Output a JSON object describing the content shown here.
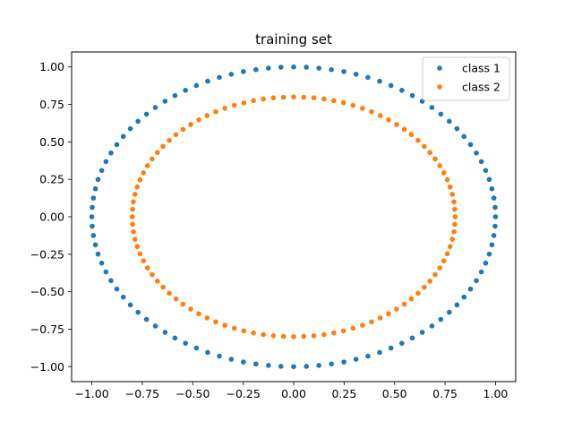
{
  "chart_data": {
    "type": "scatter",
    "title": "training set",
    "xlabel": "",
    "ylabel": "",
    "xlim": [
      -1.1,
      1.1
    ],
    "ylim": [
      -1.1,
      1.1
    ],
    "xticks": [
      -1.0,
      -0.75,
      -0.5,
      -0.25,
      0.0,
      0.25,
      0.5,
      0.75,
      1.0
    ],
    "yticks": [
      -1.0,
      -0.75,
      -0.5,
      -0.25,
      0.0,
      0.25,
      0.5,
      0.75,
      1.0
    ],
    "xtick_labels": [
      "−1.00",
      "−0.75",
      "−0.50",
      "−0.25",
      "0.00",
      "0.25",
      "0.50",
      "0.75",
      "1.00"
    ],
    "ytick_labels": [
      "−1.00",
      "−0.75",
      "−0.50",
      "−0.25",
      "0.00",
      "0.25",
      "0.50",
      "0.75",
      "1.00"
    ],
    "grid": false,
    "legend_position": "top-right",
    "series": [
      {
        "name": "class 1",
        "color": "#1f77b4",
        "points": [
          [
            1.0,
            0.0
          ],
          [
            0.998,
            0.063
          ],
          [
            0.992,
            0.125
          ],
          [
            0.982,
            0.187
          ],
          [
            0.969,
            0.249
          ],
          [
            0.951,
            0.309
          ],
          [
            0.93,
            0.368
          ],
          [
            0.905,
            0.426
          ],
          [
            0.876,
            0.482
          ],
          [
            0.844,
            0.536
          ],
          [
            0.809,
            0.588
          ],
          [
            0.771,
            0.637
          ],
          [
            0.729,
            0.685
          ],
          [
            0.685,
            0.729
          ],
          [
            0.637,
            0.771
          ],
          [
            0.588,
            0.809
          ],
          [
            0.536,
            0.844
          ],
          [
            0.482,
            0.876
          ],
          [
            0.426,
            0.905
          ],
          [
            0.368,
            0.93
          ],
          [
            0.309,
            0.951
          ],
          [
            0.249,
            0.969
          ],
          [
            0.187,
            0.982
          ],
          [
            0.125,
            0.992
          ],
          [
            0.063,
            0.998
          ],
          [
            0.0,
            1.0
          ],
          [
            -0.063,
            0.998
          ],
          [
            -0.125,
            0.992
          ],
          [
            -0.187,
            0.982
          ],
          [
            -0.249,
            0.969
          ],
          [
            -0.309,
            0.951
          ],
          [
            -0.368,
            0.93
          ],
          [
            -0.426,
            0.905
          ],
          [
            -0.482,
            0.876
          ],
          [
            -0.536,
            0.844
          ],
          [
            -0.588,
            0.809
          ],
          [
            -0.637,
            0.771
          ],
          [
            -0.685,
            0.729
          ],
          [
            -0.729,
            0.685
          ],
          [
            -0.771,
            0.637
          ],
          [
            -0.809,
            0.588
          ],
          [
            -0.844,
            0.536
          ],
          [
            -0.876,
            0.482
          ],
          [
            -0.905,
            0.426
          ],
          [
            -0.93,
            0.368
          ],
          [
            -0.951,
            0.309
          ],
          [
            -0.969,
            0.249
          ],
          [
            -0.982,
            0.187
          ],
          [
            -0.992,
            0.125
          ],
          [
            -0.998,
            0.063
          ],
          [
            -1.0,
            0.0
          ],
          [
            -0.998,
            -0.063
          ],
          [
            -0.992,
            -0.125
          ],
          [
            -0.982,
            -0.187
          ],
          [
            -0.969,
            -0.249
          ],
          [
            -0.951,
            -0.309
          ],
          [
            -0.93,
            -0.368
          ],
          [
            -0.905,
            -0.426
          ],
          [
            -0.876,
            -0.482
          ],
          [
            -0.844,
            -0.536
          ],
          [
            -0.809,
            -0.588
          ],
          [
            -0.771,
            -0.637
          ],
          [
            -0.729,
            -0.685
          ],
          [
            -0.685,
            -0.729
          ],
          [
            -0.637,
            -0.771
          ],
          [
            -0.588,
            -0.809
          ],
          [
            -0.536,
            -0.844
          ],
          [
            -0.482,
            -0.876
          ],
          [
            -0.426,
            -0.905
          ],
          [
            -0.368,
            -0.93
          ],
          [
            -0.309,
            -0.951
          ],
          [
            -0.249,
            -0.969
          ],
          [
            -0.187,
            -0.982
          ],
          [
            -0.125,
            -0.992
          ],
          [
            -0.063,
            -0.998
          ],
          [
            0.0,
            -1.0
          ],
          [
            0.063,
            -0.998
          ],
          [
            0.125,
            -0.992
          ],
          [
            0.187,
            -0.982
          ],
          [
            0.249,
            -0.969
          ],
          [
            0.309,
            -0.951
          ],
          [
            0.368,
            -0.93
          ],
          [
            0.426,
            -0.905
          ],
          [
            0.482,
            -0.876
          ],
          [
            0.536,
            -0.844
          ],
          [
            0.588,
            -0.809
          ],
          [
            0.637,
            -0.771
          ],
          [
            0.685,
            -0.729
          ],
          [
            0.729,
            -0.685
          ],
          [
            0.771,
            -0.637
          ],
          [
            0.809,
            -0.588
          ],
          [
            0.844,
            -0.536
          ],
          [
            0.876,
            -0.482
          ],
          [
            0.905,
            -0.426
          ],
          [
            0.93,
            -0.368
          ],
          [
            0.951,
            -0.309
          ],
          [
            0.969,
            -0.249
          ],
          [
            0.982,
            -0.187
          ],
          [
            0.992,
            -0.125
          ],
          [
            0.998,
            -0.063
          ]
        ]
      },
      {
        "name": "class 2",
        "color": "#ff7f0e",
        "points": [
          [
            0.8,
            0.0
          ],
          [
            0.798,
            0.05
          ],
          [
            0.794,
            0.1
          ],
          [
            0.786,
            0.15
          ],
          [
            0.775,
            0.199
          ],
          [
            0.761,
            0.247
          ],
          [
            0.744,
            0.294
          ],
          [
            0.724,
            0.341
          ],
          [
            0.701,
            0.386
          ],
          [
            0.675,
            0.429
          ],
          [
            0.647,
            0.47
          ],
          [
            0.616,
            0.51
          ],
          [
            0.583,
            0.548
          ],
          [
            0.548,
            0.583
          ],
          [
            0.51,
            0.616
          ],
          [
            0.47,
            0.647
          ],
          [
            0.429,
            0.675
          ],
          [
            0.386,
            0.701
          ],
          [
            0.341,
            0.724
          ],
          [
            0.294,
            0.744
          ],
          [
            0.247,
            0.761
          ],
          [
            0.199,
            0.775
          ],
          [
            0.15,
            0.786
          ],
          [
            0.1,
            0.794
          ],
          [
            0.05,
            0.798
          ],
          [
            0.0,
            0.8
          ],
          [
            -0.05,
            0.798
          ],
          [
            -0.1,
            0.794
          ],
          [
            -0.15,
            0.786
          ],
          [
            -0.199,
            0.775
          ],
          [
            -0.247,
            0.761
          ],
          [
            -0.294,
            0.744
          ],
          [
            -0.341,
            0.724
          ],
          [
            -0.386,
            0.701
          ],
          [
            -0.429,
            0.675
          ],
          [
            -0.47,
            0.647
          ],
          [
            -0.51,
            0.616
          ],
          [
            -0.548,
            0.583
          ],
          [
            -0.583,
            0.548
          ],
          [
            -0.616,
            0.51
          ],
          [
            -0.647,
            0.47
          ],
          [
            -0.675,
            0.429
          ],
          [
            -0.701,
            0.386
          ],
          [
            -0.724,
            0.341
          ],
          [
            -0.744,
            0.294
          ],
          [
            -0.761,
            0.247
          ],
          [
            -0.775,
            0.199
          ],
          [
            -0.786,
            0.15
          ],
          [
            -0.794,
            0.1
          ],
          [
            -0.798,
            0.05
          ],
          [
            -0.8,
            0.0
          ],
          [
            -0.798,
            -0.05
          ],
          [
            -0.794,
            -0.1
          ],
          [
            -0.786,
            -0.15
          ],
          [
            -0.775,
            -0.199
          ],
          [
            -0.761,
            -0.247
          ],
          [
            -0.744,
            -0.294
          ],
          [
            -0.724,
            -0.341
          ],
          [
            -0.701,
            -0.386
          ],
          [
            -0.675,
            -0.429
          ],
          [
            -0.647,
            -0.47
          ],
          [
            -0.616,
            -0.51
          ],
          [
            -0.583,
            -0.548
          ],
          [
            -0.548,
            -0.583
          ],
          [
            -0.51,
            -0.616
          ],
          [
            -0.47,
            -0.647
          ],
          [
            -0.429,
            -0.675
          ],
          [
            -0.386,
            -0.701
          ],
          [
            -0.341,
            -0.724
          ],
          [
            -0.294,
            -0.744
          ],
          [
            -0.247,
            -0.761
          ],
          [
            -0.199,
            -0.775
          ],
          [
            -0.15,
            -0.786
          ],
          [
            -0.1,
            -0.794
          ],
          [
            -0.05,
            -0.798
          ],
          [
            0.0,
            -0.8
          ],
          [
            0.05,
            -0.798
          ],
          [
            0.1,
            -0.794
          ],
          [
            0.15,
            -0.786
          ],
          [
            0.199,
            -0.775
          ],
          [
            0.247,
            -0.761
          ],
          [
            0.294,
            -0.744
          ],
          [
            0.341,
            -0.724
          ],
          [
            0.386,
            -0.701
          ],
          [
            0.429,
            -0.675
          ],
          [
            0.47,
            -0.647
          ],
          [
            0.51,
            -0.616
          ],
          [
            0.548,
            -0.583
          ],
          [
            0.583,
            -0.548
          ],
          [
            0.616,
            -0.51
          ],
          [
            0.647,
            -0.47
          ],
          [
            0.675,
            -0.429
          ],
          [
            0.701,
            -0.386
          ],
          [
            0.724,
            -0.341
          ],
          [
            0.744,
            -0.294
          ],
          [
            0.761,
            -0.247
          ],
          [
            0.775,
            -0.199
          ],
          [
            0.786,
            -0.15
          ],
          [
            0.794,
            -0.1
          ],
          [
            0.798,
            -0.05
          ]
        ]
      }
    ]
  }
}
